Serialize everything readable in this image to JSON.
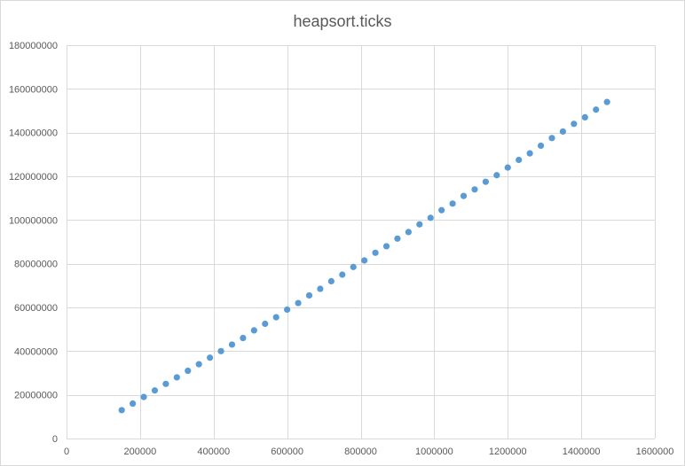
{
  "chart_data": {
    "type": "scatter",
    "title": "heapsort.ticks",
    "xlabel": "",
    "ylabel": "",
    "xlim": [
      0,
      1600000
    ],
    "ylim": [
      0,
      180000000
    ],
    "x_ticks": [
      0,
      200000,
      400000,
      600000,
      800000,
      1000000,
      1200000,
      1400000,
      1600000
    ],
    "y_ticks": [
      0,
      20000000,
      40000000,
      60000000,
      80000000,
      100000000,
      120000000,
      140000000,
      160000000,
      180000000
    ],
    "grid": true,
    "legend": "none",
    "marker_color": "#5b9bd5",
    "series": [
      {
        "points": [
          [
            150000,
            13000000
          ],
          [
            180000,
            16000000
          ],
          [
            210000,
            19000000
          ],
          [
            240000,
            22000000
          ],
          [
            270000,
            25000000
          ],
          [
            300000,
            28000000
          ],
          [
            330000,
            31000000
          ],
          [
            360000,
            34000000
          ],
          [
            390000,
            37000000
          ],
          [
            420000,
            40000000
          ],
          [
            450000,
            43000000
          ],
          [
            480000,
            46000000
          ],
          [
            510000,
            49500000
          ],
          [
            540000,
            52500000
          ],
          [
            570000,
            55500000
          ],
          [
            600000,
            59000000
          ],
          [
            630000,
            62000000
          ],
          [
            660000,
            65500000
          ],
          [
            690000,
            68500000
          ],
          [
            720000,
            72000000
          ],
          [
            750000,
            75000000
          ],
          [
            780000,
            78500000
          ],
          [
            810000,
            81500000
          ],
          [
            840000,
            85000000
          ],
          [
            870000,
            88000000
          ],
          [
            900000,
            91500000
          ],
          [
            930000,
            94500000
          ],
          [
            960000,
            98000000
          ],
          [
            990000,
            101000000
          ],
          [
            1020000,
            104500000
          ],
          [
            1050000,
            107500000
          ],
          [
            1080000,
            111000000
          ],
          [
            1110000,
            114000000
          ],
          [
            1140000,
            117500000
          ],
          [
            1170000,
            120500000
          ],
          [
            1200000,
            124000000
          ],
          [
            1230000,
            127500000
          ],
          [
            1260000,
            130500000
          ],
          [
            1290000,
            134000000
          ],
          [
            1320000,
            137500000
          ],
          [
            1350000,
            140500000
          ],
          [
            1380000,
            144000000
          ],
          [
            1410000,
            147000000
          ],
          [
            1440000,
            150500000
          ],
          [
            1470000,
            154000000
          ]
        ]
      }
    ]
  }
}
